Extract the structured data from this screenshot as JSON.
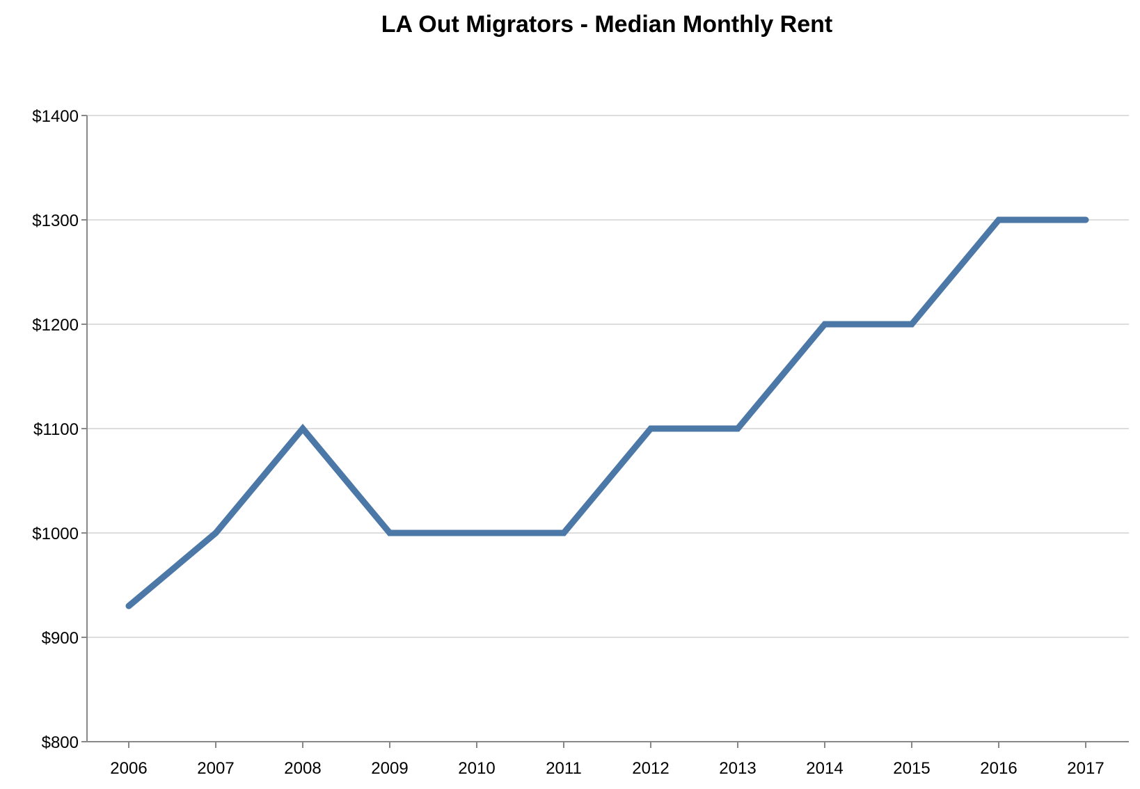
{
  "chart_data": {
    "type": "line",
    "title": "LA Out Migrators - Median Monthly Rent",
    "xlabel": "",
    "ylabel": "",
    "categories": [
      "2006",
      "2007",
      "2008",
      "2009",
      "2010",
      "2011",
      "2012",
      "2013",
      "2014",
      "2015",
      "2016",
      "2017"
    ],
    "series": [
      {
        "values": [
          930,
          1000,
          1100,
          1000,
          1000,
          1000,
          1100,
          1100,
          1200,
          1200,
          1300,
          1300
        ]
      }
    ],
    "ylim": [
      800,
      1400
    ],
    "y_ticks": [
      800,
      900,
      1000,
      1100,
      1200,
      1300,
      1400
    ],
    "y_tick_labels": [
      "$800",
      "$900",
      "$1000",
      "$1100",
      "$1200",
      "$1300",
      "$1400"
    ],
    "grid": true,
    "legend": "none"
  },
  "colors": {
    "series": "#4c78a8",
    "grid": "#dddddd",
    "axis": "#888888"
  }
}
